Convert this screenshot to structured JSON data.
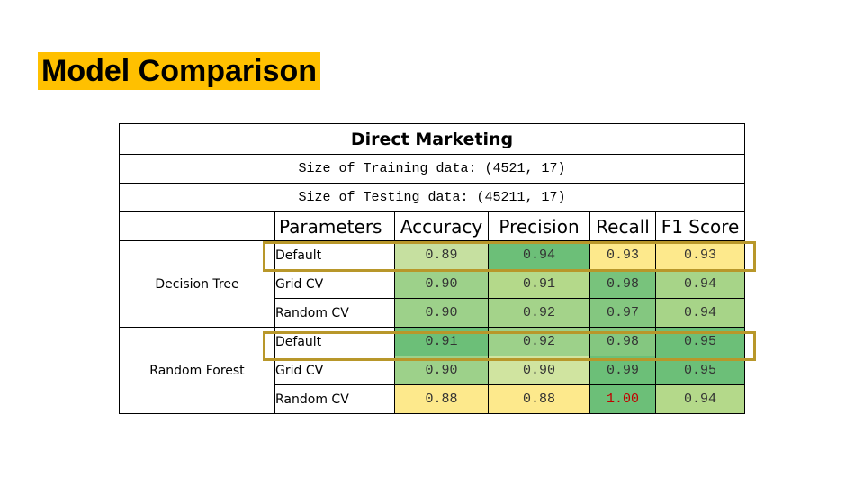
{
  "slide": {
    "title": "Model Comparison"
  },
  "table": {
    "title": "Direct Marketing",
    "training_size": "Size of Training data: (4521, 17)",
    "testing_size": "Size of Testing data: (45211, 17)",
    "headers": [
      "Parameters",
      "Accuracy",
      "Precision",
      "Recall",
      "F1 Score"
    ],
    "models": [
      {
        "name": "Decision Tree",
        "rows": [
          {
            "param": "Default",
            "values": [
              "0.89",
              "0.94",
              "0.93",
              "0.93"
            ],
            "colors": [
              "#c6e0a0",
              "#6cbf78",
              "#fde98c",
              "#fde98c"
            ]
          },
          {
            "param": "Grid CV",
            "values": [
              "0.90",
              "0.91",
              "0.98",
              "0.94"
            ],
            "colors": [
              "#9dd18a",
              "#b4d98a",
              "#78c37c",
              "#a7d488"
            ]
          },
          {
            "param": "Random CV",
            "values": [
              "0.90",
              "0.92",
              "0.97",
              "0.94"
            ],
            "colors": [
              "#9dd18a",
              "#a4d38a",
              "#84c780",
              "#a7d488"
            ]
          }
        ]
      },
      {
        "name": "Random Forest",
        "rows": [
          {
            "param": "Default",
            "values": [
              "0.91",
              "0.92",
              "0.98",
              "0.95"
            ],
            "colors": [
              "#6cbf78",
              "#9dd18a",
              "#84c780",
              "#6cbf78"
            ]
          },
          {
            "param": "Grid CV",
            "values": [
              "0.90",
              "0.90",
              "0.99",
              "0.95"
            ],
            "colors": [
              "#9dd18a",
              "#d0e4a0",
              "#6cbf78",
              "#6cbf78"
            ]
          },
          {
            "param": "Random CV",
            "values": [
              "0.88",
              "0.88",
              "1.00",
              "0.94"
            ],
            "colors": [
              "#fde98c",
              "#fde98c",
              "#6cbf78",
              "#b4d98a"
            ],
            "red": [
              false,
              false,
              true,
              false
            ]
          }
        ]
      }
    ],
    "highlight_color": "#b8972a"
  }
}
